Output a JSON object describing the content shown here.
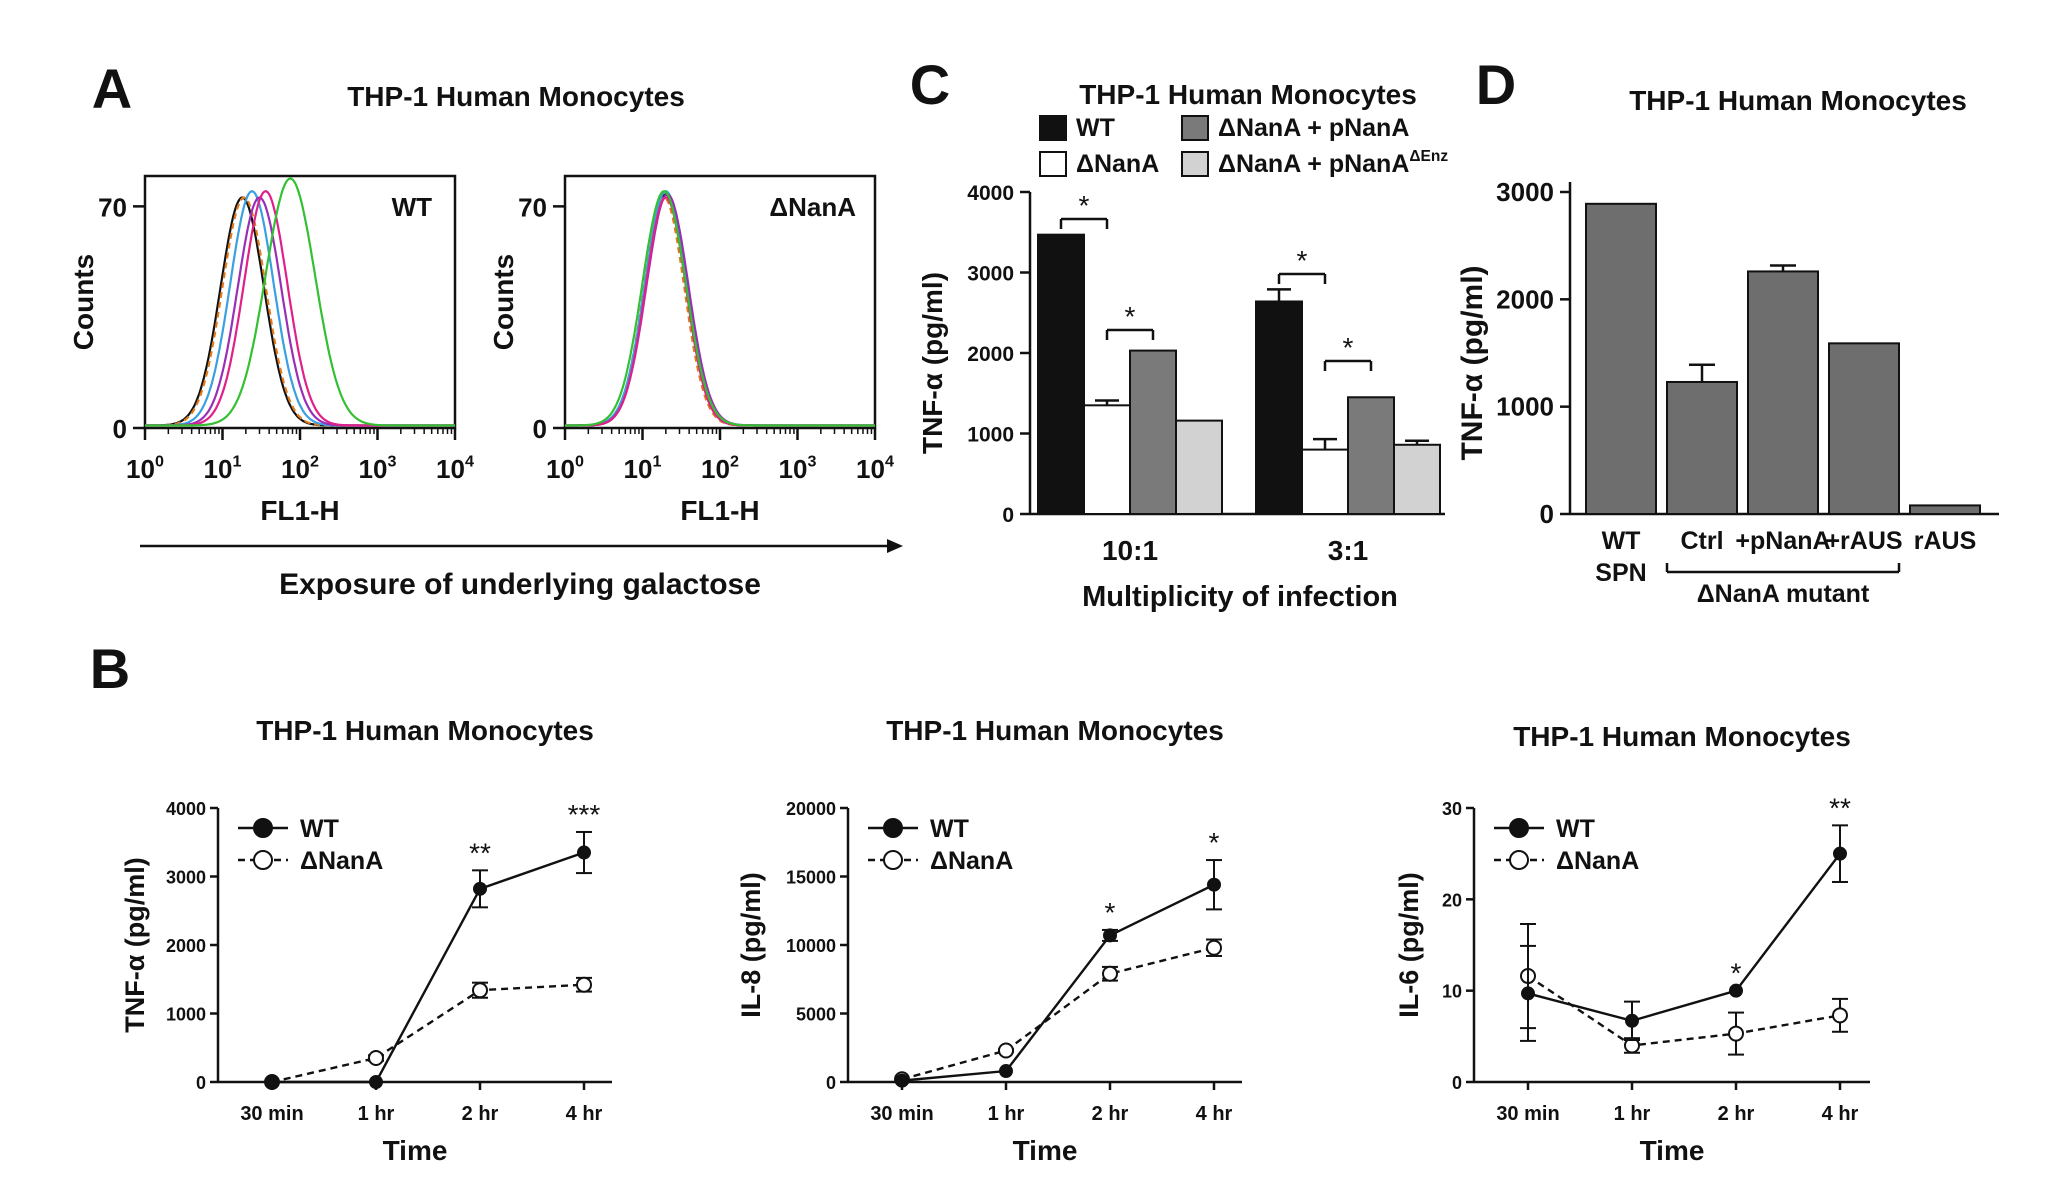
{
  "panels": {
    "A": {
      "letter": "A",
      "title": "THP-1 Human Monocytes",
      "arrow_label": "Exposure of underlying galactose"
    },
    "B": {
      "letter": "B"
    },
    "C": {
      "letter": "C"
    },
    "D": {
      "letter": "D"
    }
  },
  "series_colors": {
    "wt": "#111111",
    "nanA_open": "#ffffff",
    "complement": "#7a7a7a",
    "enz": "#d2d2d2",
    "bar_d": "#6e6e6e"
  },
  "chart_data": [
    {
      "id": "A-WT",
      "type": "histogram",
      "ylabel": "Counts",
      "xlabel": "FL1-H",
      "label": "WT",
      "xscale": "log",
      "xlim": [
        1,
        10000
      ],
      "ylim": [
        0,
        78
      ],
      "x_ticks": [
        {
          "base": "10",
          "exp": "0"
        },
        {
          "base": "10",
          "exp": "1"
        },
        {
          "base": "10",
          "exp": "2"
        },
        {
          "base": "10",
          "exp": "3"
        },
        {
          "base": "10",
          "exp": "4"
        }
      ],
      "y_ticks": [
        "0",
        "70"
      ],
      "curves": [
        {
          "color": "#111111",
          "peak_x": 18,
          "peak_y": 72,
          "width": 0.28,
          "dash": false
        },
        {
          "color": "#e07a1f",
          "peak_x": 19,
          "peak_y": 72,
          "width": 0.28,
          "dash": true
        },
        {
          "color": "#3aa0e0",
          "peak_x": 24,
          "peak_y": 74,
          "width": 0.28,
          "dash": false
        },
        {
          "color": "#9a2fb5",
          "peak_x": 30,
          "peak_y": 72,
          "width": 0.28,
          "dash": false
        },
        {
          "color": "#e0208a",
          "peak_x": 36,
          "peak_y": 74,
          "width": 0.28,
          "dash": false
        },
        {
          "color": "#33c033",
          "peak_x": 75,
          "peak_y": 78,
          "width": 0.32,
          "dash": false
        }
      ]
    },
    {
      "id": "A-NanA",
      "type": "histogram",
      "ylabel": "Counts",
      "xlabel": "FL1-H",
      "label": "ΔNanA",
      "xscale": "log",
      "xlim": [
        1,
        10000
      ],
      "ylim": [
        0,
        78
      ],
      "x_ticks": [
        {
          "base": "10",
          "exp": "0"
        },
        {
          "base": "10",
          "exp": "1"
        },
        {
          "base": "10",
          "exp": "2"
        },
        {
          "base": "10",
          "exp": "3"
        },
        {
          "base": "10",
          "exp": "4"
        }
      ],
      "y_ticks": [
        "0",
        "70"
      ],
      "curves": [
        {
          "color": "#111111",
          "peak_x": 20,
          "peak_y": 73,
          "width": 0.26,
          "dash": false
        },
        {
          "color": "#e07a1f",
          "peak_x": 19,
          "peak_y": 72,
          "width": 0.26,
          "dash": true
        },
        {
          "color": "#3aa0e0",
          "peak_x": 20,
          "peak_y": 74,
          "width": 0.27,
          "dash": false
        },
        {
          "color": "#9a2fb5",
          "peak_x": 21,
          "peak_y": 73,
          "width": 0.27,
          "dash": false
        },
        {
          "color": "#e0208a",
          "peak_x": 20,
          "peak_y": 72,
          "width": 0.26,
          "dash": false
        },
        {
          "color": "#33c033",
          "peak_x": 19,
          "peak_y": 74,
          "width": 0.28,
          "dash": false
        }
      ]
    },
    {
      "id": "C",
      "type": "bar",
      "title": "THP-1 Human Monocytes",
      "ylabel": "TNF-α (pg/ml)",
      "xlabel": "Multiplicity of infection",
      "categories": [
        "10:1",
        "3:1"
      ],
      "ylim": [
        0,
        4000
      ],
      "y_ticks": [
        "0",
        "1000",
        "2000",
        "3000",
        "4000"
      ],
      "series": [
        {
          "name": "WT",
          "values": [
            3470,
            2640
          ],
          "err": [
            0,
            150
          ]
        },
        {
          "name": "ΔNanA",
          "values": [
            1350,
            800
          ],
          "err": [
            60,
            130
          ]
        },
        {
          "name": "ΔNanA + pNanA",
          "values": [
            2030,
            1450
          ],
          "err": [
            0,
            0
          ]
        },
        {
          "name": "ΔNanA + pNanA",
          "sup": "ΔEnz",
          "values": [
            1160,
            860
          ],
          "err": [
            0,
            50
          ]
        }
      ],
      "sig": "*"
    },
    {
      "id": "D",
      "type": "bar",
      "title": "THP-1 Human Monocytes",
      "ylabel": "TNF-α (pg/ml)",
      "ylim": [
        0,
        3000
      ],
      "y_ticks": [
        "0",
        "1000",
        "2000",
        "3000"
      ],
      "categories": [
        [
          "WT",
          "SPN"
        ],
        [
          "Ctrl"
        ],
        [
          "+pNanA"
        ],
        [
          "+rAUS"
        ],
        [
          "rAUS"
        ]
      ],
      "values": [
        2890,
        1230,
        2260,
        1590,
        80
      ],
      "err": [
        0,
        160,
        55,
        0,
        0
      ],
      "group_label": "ΔNanA mutant"
    },
    {
      "id": "B1",
      "type": "line",
      "title": "THP-1 Human Monocytes",
      "ylabel": "TNF-α (pg/ml)",
      "xlabel": "Time",
      "categories": [
        "30 min",
        "1 hr",
        "2 hr",
        "4 hr"
      ],
      "ylim": [
        0,
        4000
      ],
      "y_ticks": [
        "0",
        "1000",
        "2000",
        "3000",
        "4000"
      ],
      "series": [
        {
          "name": "WT",
          "values": [
            0,
            0,
            2820,
            3350
          ],
          "err": [
            0,
            0,
            270,
            300
          ]
        },
        {
          "name": "ΔNanA",
          "values": [
            0,
            350,
            1340,
            1420
          ],
          "err": [
            0,
            40,
            110,
            100
          ]
        }
      ],
      "stars": [
        "",
        "",
        "**",
        "***"
      ]
    },
    {
      "id": "B2",
      "type": "line",
      "title": "THP-1 Human Monocytes",
      "ylabel": "IL-8 (pg/ml)",
      "xlabel": "Time",
      "categories": [
        "30 min",
        "1 hr",
        "2 hr",
        "4 hr"
      ],
      "ylim": [
        0,
        20000
      ],
      "y_ticks": [
        "0",
        "5000",
        "10000",
        "15000",
        "20000"
      ],
      "series": [
        {
          "name": "WT",
          "values": [
            100,
            800,
            10700,
            14400
          ],
          "err": [
            0,
            0,
            400,
            1800
          ]
        },
        {
          "name": "ΔNanA",
          "values": [
            200,
            2300,
            7900,
            9800
          ],
          "err": [
            0,
            100,
            500,
            600
          ]
        }
      ],
      "stars": [
        "",
        "",
        "*",
        "*"
      ]
    },
    {
      "id": "B3",
      "type": "line",
      "title": "THP-1 Human Monocytes",
      "ylabel": "IL-6 (pg/ml)",
      "xlabel": "Time",
      "categories": [
        "30 min",
        "1 hr",
        "2 hr",
        "4 hr"
      ],
      "ylim": [
        0,
        30
      ],
      "y_ticks": [
        "0",
        "10",
        "20",
        "30"
      ],
      "series": [
        {
          "name": "WT",
          "values": [
            9.7,
            6.7,
            10,
            25
          ],
          "err": [
            5.2,
            2.1,
            0,
            3.1
          ]
        },
        {
          "name": "ΔNanA",
          "values": [
            11.6,
            4,
            5.3,
            7.3
          ],
          "err": [
            5.7,
            0.8,
            2.3,
            1.8
          ]
        }
      ],
      "stars": [
        "",
        "",
        "*",
        "**"
      ]
    }
  ]
}
